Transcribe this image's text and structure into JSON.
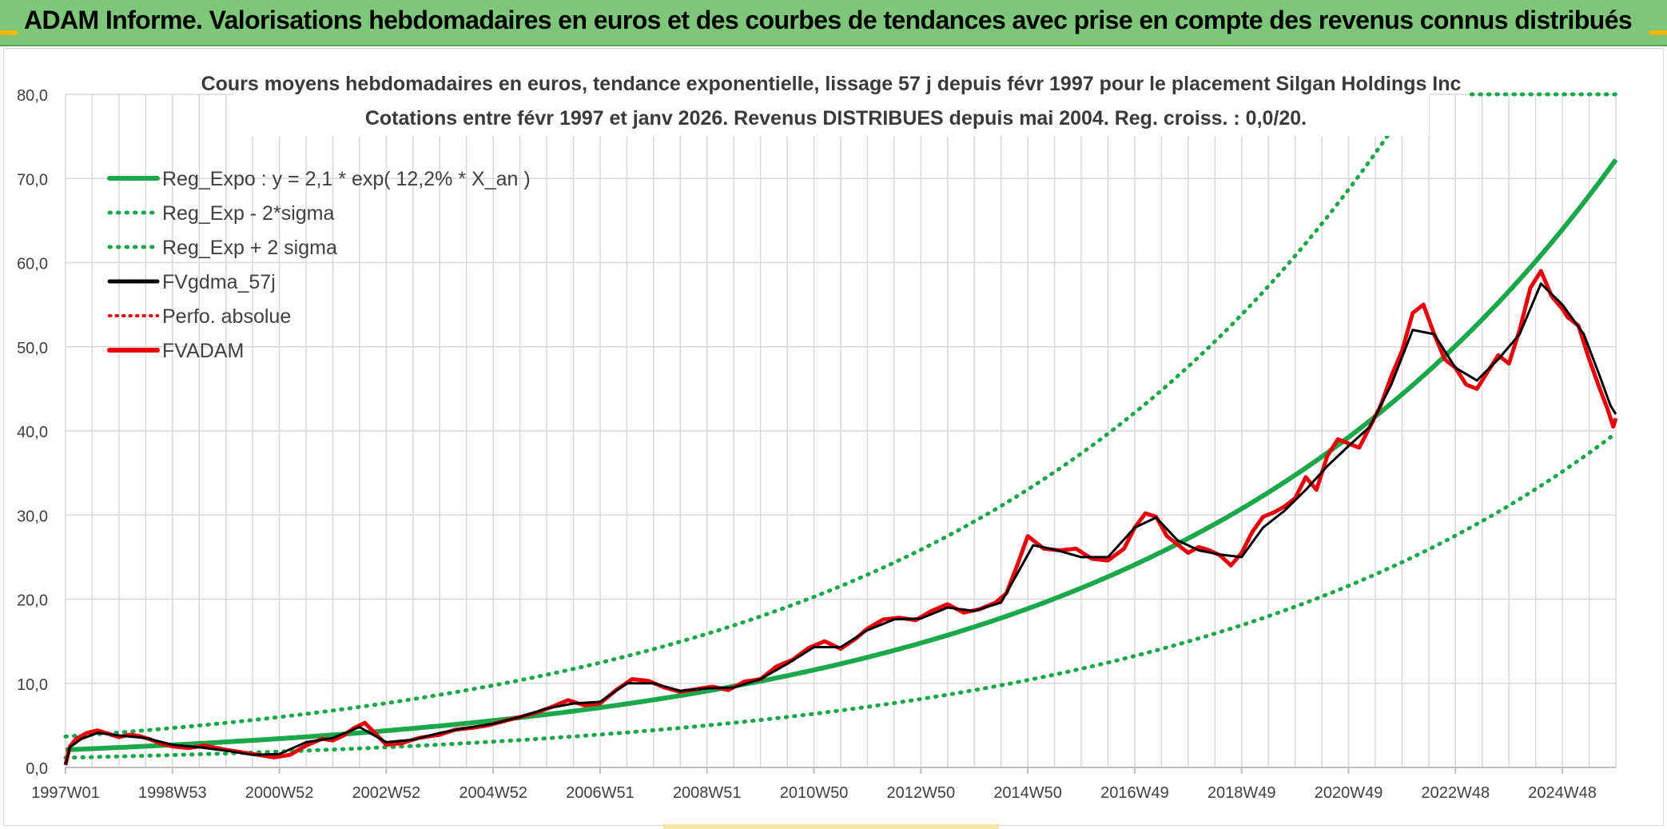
{
  "banner": {
    "title": "ADAM Informe. Valorisations hebdomadaires en euros et des courbes de tendances avec prise en compte des revenus connus distribués"
  },
  "colors": {
    "banner_bg": "#7dc67a",
    "reg_expo": "#1aa84a",
    "sigma_band": "#1aa84a",
    "fvgdma": "#000000",
    "perfo": "#e8000b",
    "fvadam": "#e8000b",
    "grid": "#d9d9d9",
    "text": "#404040"
  },
  "chart_data": {
    "type": "line",
    "title": "Cours moyens hebdomadaires en euros, tendance exponentielle, lissage 57 j depuis févr 1997 pour le placement Silgan Holdings Inc",
    "subtitle": "Cotations entre févr 1997 et janv 2026. Revenus DISTRIBUES depuis mai 2004. Reg. croiss. : 0,0/20.",
    "xlabel": "",
    "ylabel": "",
    "ylim": [
      0,
      80
    ],
    "xlim": [
      1997.0,
      2026.0
    ],
    "y_ticks": [
      "0,0",
      "10,0",
      "20,0",
      "30,0",
      "40,0",
      "50,0",
      "60,0",
      "70,0",
      "80,0"
    ],
    "x_ticks": [
      {
        "x": 1997.0,
        "label": "1997W01"
      },
      {
        "x": 1999.0,
        "label": "1998W53"
      },
      {
        "x": 2001.0,
        "label": "2000W52"
      },
      {
        "x": 2003.0,
        "label": "2002W52"
      },
      {
        "x": 2005.0,
        "label": "2004W52"
      },
      {
        "x": 2007.0,
        "label": "2006W51"
      },
      {
        "x": 2009.0,
        "label": "2008W51"
      },
      {
        "x": 2011.0,
        "label": "2010W50"
      },
      {
        "x": 2013.0,
        "label": "2012W50"
      },
      {
        "x": 2015.0,
        "label": "2014W50"
      },
      {
        "x": 2017.0,
        "label": "2016W49"
      },
      {
        "x": 2019.0,
        "label": "2018W49"
      },
      {
        "x": 2021.0,
        "label": "2020W49"
      },
      {
        "x": 2023.0,
        "label": "2022W48"
      },
      {
        "x": 2025.0,
        "label": "2024W48"
      }
    ],
    "grid": true,
    "legend_position": "top-left",
    "legend": [
      {
        "key": "reg_expo",
        "label": "Reg_Expo : y = 2,1 * exp( 12,2% *  X_an )",
        "style": "solid-thick"
      },
      {
        "key": "reg_minus",
        "label": "Reg_Exp - 2*sigma",
        "style": "dotted-green"
      },
      {
        "key": "reg_plus",
        "label": "Reg_Exp + 2 sigma",
        "style": "dotted-green"
      },
      {
        "key": "fvgdma",
        "label": "FVgdma_57j",
        "style": "solid-black"
      },
      {
        "key": "perfo",
        "label": "Perfo. absolue",
        "style": "dotted-red"
      },
      {
        "key": "fvadam",
        "label": "FVADAM",
        "style": "solid-red"
      }
    ],
    "regression": {
      "a": 2.1,
      "rate": 0.122,
      "start": 1997.0,
      "minus_factor": 0.55,
      "plus_factor": 1.75,
      "cap": 80
    },
    "series": [
      {
        "name": "FVADAM",
        "x": [
          1997.0,
          1997.08,
          1997.2,
          1997.4,
          1997.6,
          1997.8,
          1998.0,
          1998.2,
          1998.4,
          1998.6,
          1998.8,
          1999.0,
          1999.3,
          1999.6,
          2000.0,
          2000.3,
          2000.6,
          2000.9,
          2001.2,
          2001.5,
          2001.8,
          2002.0,
          2002.2,
          2002.4,
          2002.6,
          2002.8,
          2003.0,
          2003.3,
          2003.6,
          2004.0,
          2004.3,
          2004.6,
          2004.9,
          2005.2,
          2005.5,
          2005.8,
          2006.1,
          2006.4,
          2006.7,
          2007.0,
          2007.3,
          2007.6,
          2007.9,
          2008.2,
          2008.5,
          2008.8,
          2009.1,
          2009.4,
          2009.7,
          2010.0,
          2010.3,
          2010.6,
          2010.9,
          2011.2,
          2011.5,
          2011.8,
          2012.0,
          2012.3,
          2012.6,
          2012.9,
          2013.2,
          2013.5,
          2013.8,
          2014.1,
          2014.4,
          2014.6,
          2014.8,
          2015.0,
          2015.3,
          2015.6,
          2015.9,
          2016.2,
          2016.5,
          2016.8,
          2017.0,
          2017.2,
          2017.4,
          2017.6,
          2017.8,
          2018.0,
          2018.2,
          2018.4,
          2018.6,
          2018.8,
          2019.0,
          2019.2,
          2019.4,
          2019.6,
          2019.8,
          2020.0,
          2020.2,
          2020.4,
          2020.6,
          2020.8,
          2021.0,
          2021.2,
          2021.4,
          2021.6,
          2021.8,
          2022.0,
          2022.2,
          2022.4,
          2022.6,
          2022.8,
          2023.0,
          2023.2,
          2023.4,
          2023.6,
          2023.8,
          2024.0,
          2024.2,
          2024.4,
          2024.6,
          2024.8,
          2025.0,
          2025.1,
          2025.3,
          2025.5,
          2025.7,
          2025.85,
          2025.95,
          2026.0
        ],
        "values": [
          0.3,
          2.5,
          3.4,
          4.1,
          4.4,
          4.0,
          3.6,
          3.9,
          3.7,
          3.3,
          2.8,
          2.5,
          2.3,
          2.6,
          2.1,
          1.8,
          1.5,
          1.2,
          1.5,
          2.6,
          3.4,
          3.2,
          3.8,
          4.7,
          5.3,
          4.0,
          2.7,
          2.9,
          3.5,
          3.9,
          4.5,
          4.7,
          5.0,
          5.5,
          6.0,
          6.5,
          7.2,
          8.0,
          7.4,
          7.6,
          9.2,
          10.5,
          10.3,
          9.5,
          9.0,
          9.3,
          9.6,
          9.2,
          10.2,
          10.5,
          12.0,
          12.8,
          14.2,
          15.0,
          14.1,
          15.4,
          16.5,
          17.6,
          17.8,
          17.5,
          18.6,
          19.4,
          18.4,
          18.8,
          19.6,
          20.7,
          24.0,
          27.5,
          26.0,
          25.8,
          26.0,
          24.8,
          24.6,
          26.0,
          28.5,
          30.2,
          29.8,
          27.5,
          26.5,
          25.5,
          26.2,
          25.8,
          25.2,
          24.0,
          25.5,
          28.0,
          29.8,
          30.3,
          31.0,
          32.0,
          34.5,
          33.0,
          37.0,
          39.0,
          38.5,
          38.0,
          40.5,
          43.0,
          46.5,
          49.5,
          54.0,
          55.0,
          51.5,
          48.5,
          47.5,
          45.5,
          45.0,
          47.0,
          49.0,
          48.0,
          52.0,
          57.0,
          59.0,
          56.0,
          54.5,
          53.5,
          52.5,
          48.5,
          45.0,
          42.5,
          40.5,
          41.5
        ]
      },
      {
        "name": "FVgdma_57j",
        "x": [
          1997.0,
          1997.08,
          1997.3,
          1997.6,
          1998.0,
          1998.5,
          1999.0,
          1999.5,
          2000.0,
          2000.5,
          2001.0,
          2001.5,
          2002.0,
          2002.5,
          2003.0,
          2003.5,
          2004.0,
          2004.5,
          2005.0,
          2005.5,
          2006.0,
          2006.5,
          2007.0,
          2007.5,
          2008.0,
          2008.5,
          2009.0,
          2009.5,
          2010.0,
          2010.5,
          2011.0,
          2011.5,
          2012.0,
          2012.5,
          2013.0,
          2013.5,
          2014.0,
          2014.5,
          2014.8,
          2015.1,
          2015.5,
          2016.0,
          2016.5,
          2017.0,
          2017.4,
          2017.8,
          2018.2,
          2018.6,
          2019.0,
          2019.4,
          2019.8,
          2020.2,
          2020.6,
          2021.0,
          2021.4,
          2021.8,
          2022.2,
          2022.6,
          2023.0,
          2023.4,
          2023.8,
          2024.2,
          2024.6,
          2025.0,
          2025.4,
          2025.7,
          2025.9,
          2026.0
        ],
        "values": [
          0.3,
          2.4,
          3.4,
          4.1,
          3.8,
          3.5,
          2.7,
          2.4,
          2.0,
          1.5,
          1.6,
          3.0,
          3.5,
          4.8,
          3.0,
          3.3,
          4.1,
          4.7,
          5.2,
          6.0,
          7.0,
          7.6,
          7.8,
          10.0,
          10.0,
          9.1,
          9.4,
          9.5,
          10.5,
          12.3,
          14.3,
          14.3,
          16.3,
          17.6,
          17.7,
          19.0,
          18.6,
          19.6,
          23.0,
          26.4,
          25.9,
          25.0,
          25.0,
          28.5,
          29.7,
          27.0,
          25.8,
          25.3,
          25.0,
          28.5,
          30.5,
          33.0,
          35.8,
          38.2,
          40.5,
          45.5,
          52.0,
          51.5,
          47.5,
          46.0,
          48.5,
          51.5,
          57.5,
          55.0,
          51.5,
          46.5,
          43.0,
          42.0
        ]
      }
    ]
  }
}
